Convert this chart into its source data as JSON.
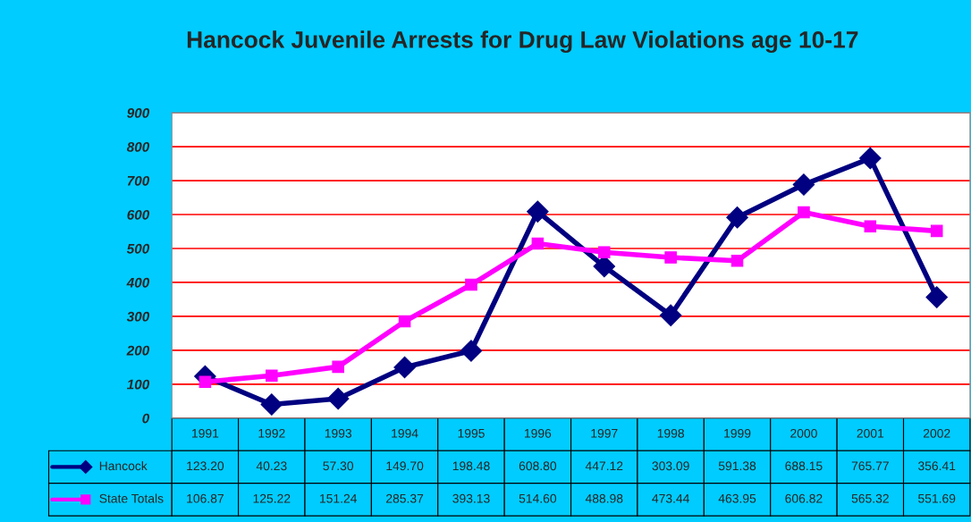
{
  "chart_data": {
    "type": "line",
    "title": "Hancock Juvenile Arrests for Drug Law Violations age 10-17",
    "categories": [
      "1991",
      "1992",
      "1993",
      "1994",
      "1995",
      "1996",
      "1997",
      "1998",
      "1999",
      "2000",
      "2001",
      "2002"
    ],
    "series": [
      {
        "name": "Hancock",
        "color": "#000080",
        "marker": "diamond",
        "values": [
          123.2,
          40.23,
          57.3,
          149.7,
          198.48,
          608.8,
          447.12,
          303.09,
          591.38,
          688.15,
          765.77,
          356.41
        ],
        "value_labels": [
          "123.20",
          "40.23",
          "57.30",
          "149.70",
          "198.48",
          "608.80",
          "447.12",
          "303.09",
          "591.38",
          "688.15",
          "765.77",
          "356.41"
        ]
      },
      {
        "name": "State Totals",
        "color": "#ff00ff",
        "marker": "square",
        "values": [
          106.87,
          125.22,
          151.24,
          285.37,
          393.13,
          514.6,
          488.98,
          473.44,
          463.95,
          606.82,
          565.32,
          551.69
        ],
        "value_labels": [
          "106.87",
          "125.22",
          "151.24",
          "285.37",
          "393.13",
          "514.60",
          "488.98",
          "473.44",
          "463.95",
          "606.82",
          "565.32",
          "551.69"
        ]
      }
    ],
    "ylim": [
      0,
      900
    ],
    "yticks": [
      0,
      100,
      200,
      300,
      400,
      500,
      600,
      700,
      800,
      900
    ],
    "grid": "y",
    "legend": "bottom",
    "line_style": "solid"
  }
}
